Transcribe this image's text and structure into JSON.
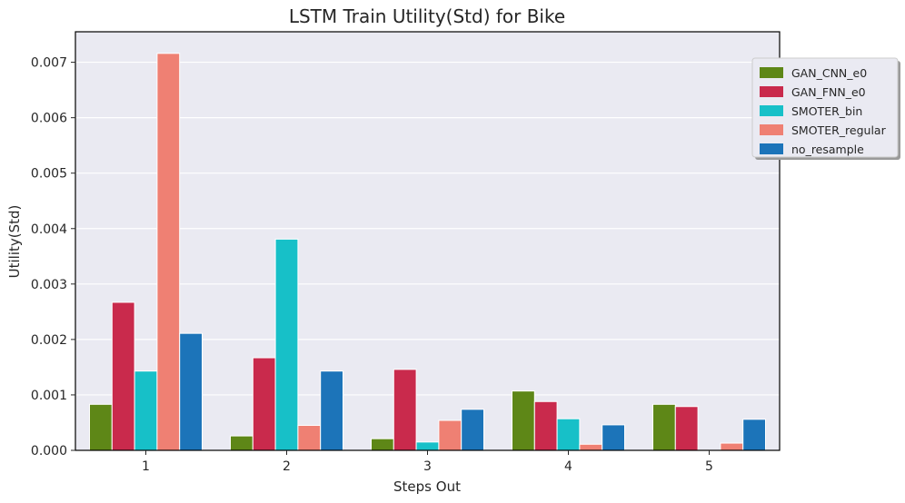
{
  "chart_data": {
    "type": "bar",
    "title": "LSTM Train Utility(Std) for Bike",
    "xlabel": "Steps Out",
    "ylabel": "Utility(Std)",
    "categories": [
      "1",
      "2",
      "3",
      "4",
      "5"
    ],
    "ylim": [
      0,
      0.00755
    ],
    "yticks": [
      "0.000",
      "0.001",
      "0.002",
      "0.003",
      "0.004",
      "0.005",
      "0.006",
      "0.007"
    ],
    "ytick_values": [
      0,
      0.001,
      0.002,
      0.003,
      0.004,
      0.005,
      0.006,
      0.007
    ],
    "grid": true,
    "legend_position": "upper-right-outside",
    "series": [
      {
        "name": "GAN_CNN_e0",
        "color": "#5e8717",
        "values": [
          0.00083,
          0.00026,
          0.00021,
          0.00107,
          0.00083
        ]
      },
      {
        "name": "GAN_FNN_e0",
        "color": "#c92a4c",
        "values": [
          0.00267,
          0.00167,
          0.00146,
          0.00088,
          0.00079
        ]
      },
      {
        "name": "SMOTER_bin",
        "color": "#17c0c8",
        "values": [
          0.00143,
          0.00381,
          0.00015,
          0.00057,
          0.0
        ]
      },
      {
        "name": "SMOTER_regular",
        "color": "#ef8073",
        "values": [
          0.00716,
          0.00045,
          0.00054,
          0.00011,
          0.00013
        ]
      },
      {
        "name": "no_resample",
        "color": "#1c74b9",
        "values": [
          0.00211,
          0.00143,
          0.00074,
          0.00046,
          0.00056
        ]
      }
    ]
  }
}
